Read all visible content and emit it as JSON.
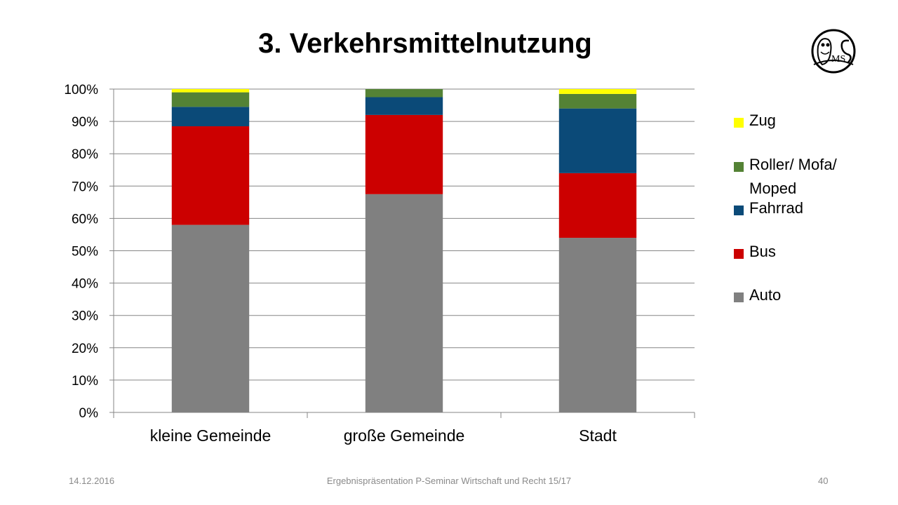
{
  "slide": {
    "title": "3. Verkehrsmittelnutzung",
    "footer": {
      "date": "14.12.2016",
      "center": "Ergebnispräsentation P-Seminar Wirtschaft und Recht 15/17",
      "page": "40"
    },
    "logo": {
      "icon": "owl-ms-logo-icon",
      "letters": "MS"
    }
  },
  "chart_data": {
    "type": "bar",
    "stacked": "percent",
    "categories": [
      "kleine Gemeinde",
      "große Gemeinde",
      "Stadt"
    ],
    "series": [
      {
        "name": "Auto",
        "color": "#808080",
        "values": [
          58,
          67.5,
          54
        ]
      },
      {
        "name": "Bus",
        "color": "#cc0000",
        "values": [
          30.5,
          24.5,
          20
        ]
      },
      {
        "name": "Fahrrad",
        "color": "#0b4a78",
        "values": [
          6,
          5.5,
          20
        ]
      },
      {
        "name": "Roller/ Mofa/ Moped",
        "color": "#548235",
        "values": [
          4.5,
          2.5,
          4.5
        ]
      },
      {
        "name": "Zug",
        "color": "#ffff00",
        "values": [
          1,
          0,
          1.5
        ]
      }
    ],
    "yticks": [
      "0%",
      "10%",
      "20%",
      "30%",
      "40%",
      "50%",
      "60%",
      "70%",
      "80%",
      "90%",
      "100%"
    ],
    "ylim": [
      0,
      100
    ],
    "grid": true,
    "legend_position": "right",
    "legend_order": [
      "Zug",
      "Roller/ Mofa/ Moped",
      "Fahrrad",
      "Bus",
      "Auto"
    ]
  }
}
